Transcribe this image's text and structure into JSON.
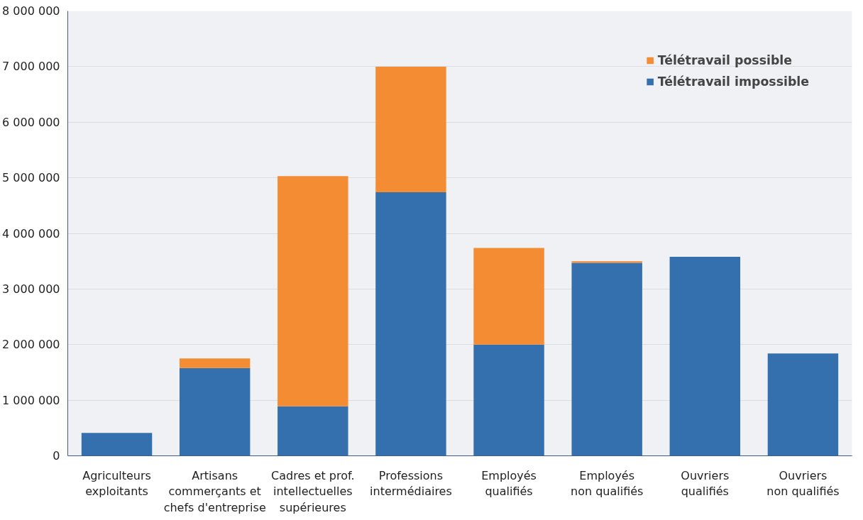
{
  "chart_data": {
    "type": "bar",
    "stacked": true,
    "categories": [
      "Agriculteurs\nexploitants",
      "Artisans\ncommerçants et\nchefs d'entreprise",
      "Cadres et prof.\nintellectuelles\nsupérieures",
      "Professions\nintermédiaires",
      "Employés\nqualifiés",
      "Employés\nnon qualifiés",
      "Ouvriers\nqualifiés",
      "Ouvriers\nnon qualifiés"
    ],
    "series": [
      {
        "name": "Télétravail impossible",
        "color": "#3470ae",
        "values": [
          410000,
          1580000,
          890000,
          4740000,
          2000000,
          3470000,
          3580000,
          1840000
        ]
      },
      {
        "name": "Télétravail possible",
        "color": "#f48c33",
        "values": [
          0,
          170000,
          4140000,
          2260000,
          1740000,
          30000,
          0,
          0
        ]
      }
    ],
    "ylim": [
      0,
      8000000
    ],
    "yticks": [
      0,
      {
        "value": 1000000,
        "label": "1 000 000"
      },
      {
        "value": 2000000,
        "label": "2 000 000"
      },
      {
        "value": 3000000,
        "label": "3 000 000"
      },
      {
        "value": 4000000,
        "label": "4 000 000"
      },
      {
        "value": 5000000,
        "label": "5 000 000"
      },
      {
        "value": 6000000,
        "label": "6 000 000"
      },
      {
        "value": 7000000,
        "label": "7 000 000"
      },
      {
        "value": 8000000,
        "label": "8 000 000"
      }
    ],
    "grid": "y",
    "legend": "top right"
  }
}
